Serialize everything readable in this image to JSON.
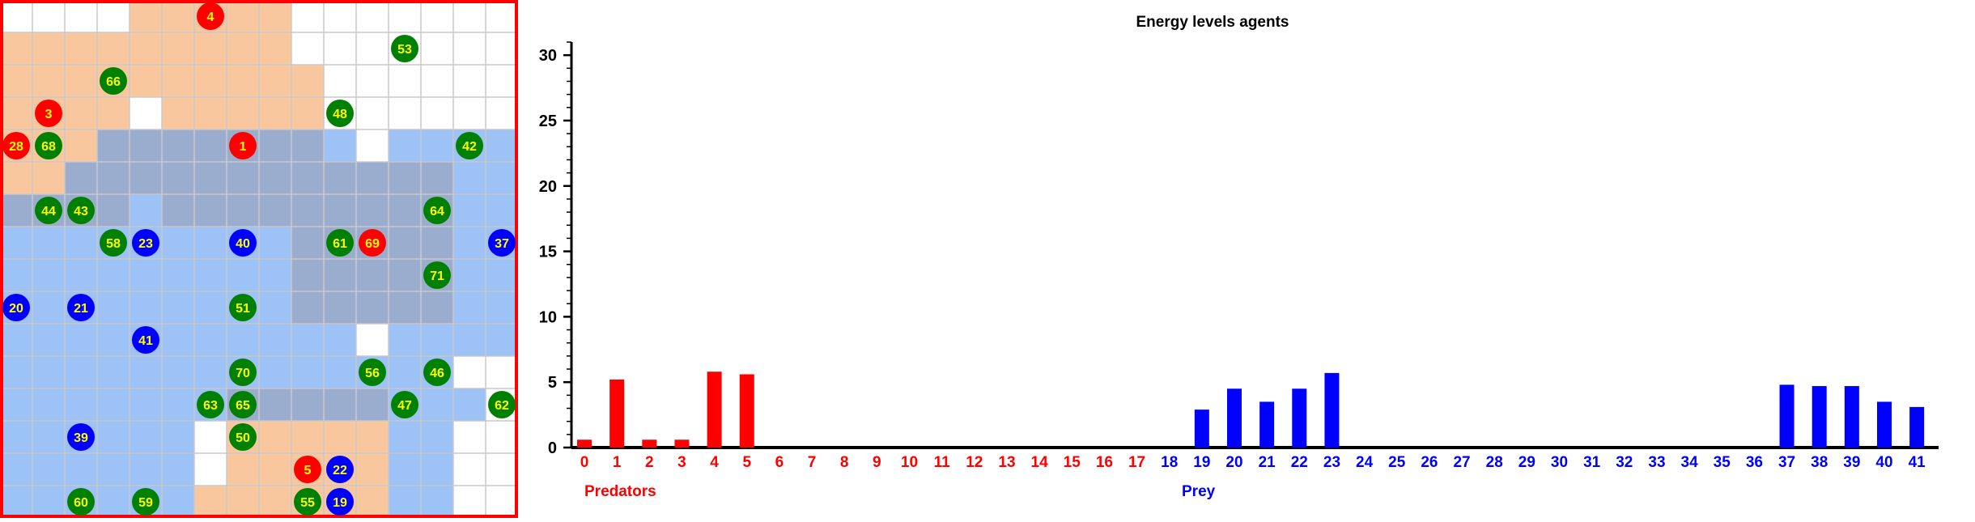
{
  "colors": {
    "predator": "#ff0000",
    "prey": "#0000ff",
    "plant": "#008000",
    "agent_label": "#ffff00",
    "grid_line": "#c8c8c8",
    "predator_zone": "#f5a25d",
    "prey_zone": "#5b9bf0",
    "border": "#ff0000"
  },
  "grid": {
    "cols": 16,
    "rows": 16,
    "predator_cells": [
      [
        0,
        4
      ],
      [
        0,
        5
      ],
      [
        0,
        6
      ],
      [
        0,
        7
      ],
      [
        0,
        8
      ],
      [
        1,
        0
      ],
      [
        1,
        1
      ],
      [
        1,
        2
      ],
      [
        1,
        3
      ],
      [
        1,
        4
      ],
      [
        1,
        5
      ],
      [
        1,
        6
      ],
      [
        1,
        7
      ],
      [
        1,
        8
      ],
      [
        2,
        0
      ],
      [
        2,
        1
      ],
      [
        2,
        2
      ],
      [
        2,
        3
      ],
      [
        2,
        4
      ],
      [
        2,
        5
      ],
      [
        2,
        6
      ],
      [
        2,
        7
      ],
      [
        2,
        8
      ],
      [
        2,
        9
      ],
      [
        3,
        0
      ],
      [
        3,
        1
      ],
      [
        3,
        2
      ],
      [
        3,
        3
      ],
      [
        3,
        5
      ],
      [
        3,
        6
      ],
      [
        3,
        7
      ],
      [
        3,
        8
      ],
      [
        3,
        9
      ],
      [
        4,
        0
      ],
      [
        4,
        1
      ],
      [
        4,
        2
      ],
      [
        4,
        3
      ],
      [
        4,
        4
      ],
      [
        4,
        5
      ],
      [
        4,
        6
      ],
      [
        4,
        7
      ],
      [
        4,
        8
      ],
      [
        4,
        9
      ],
      [
        5,
        0
      ],
      [
        5,
        1
      ],
      [
        5,
        2
      ],
      [
        5,
        3
      ],
      [
        5,
        4
      ],
      [
        5,
        5
      ],
      [
        5,
        6
      ],
      [
        5,
        7
      ],
      [
        5,
        8
      ],
      [
        5,
        9
      ],
      [
        5,
        10
      ],
      [
        5,
        11
      ],
      [
        5,
        12
      ],
      [
        5,
        13
      ],
      [
        6,
        0
      ],
      [
        6,
        1
      ],
      [
        6,
        2
      ],
      [
        6,
        3
      ],
      [
        6,
        5
      ],
      [
        6,
        6
      ],
      [
        6,
        7
      ],
      [
        6,
        8
      ],
      [
        6,
        9
      ],
      [
        6,
        10
      ],
      [
        6,
        11
      ],
      [
        6,
        12
      ],
      [
        6,
        13
      ],
      [
        7,
        9
      ],
      [
        7,
        10
      ],
      [
        7,
        11
      ],
      [
        7,
        12
      ],
      [
        7,
        13
      ],
      [
        8,
        9
      ],
      [
        8,
        10
      ],
      [
        8,
        11
      ],
      [
        8,
        12
      ],
      [
        8,
        13
      ],
      [
        9,
        9
      ],
      [
        9,
        10
      ],
      [
        9,
        11
      ],
      [
        9,
        12
      ],
      [
        9,
        13
      ],
      [
        12,
        7
      ],
      [
        12,
        8
      ],
      [
        12,
        9
      ],
      [
        12,
        10
      ],
      [
        12,
        11
      ],
      [
        13,
        7
      ],
      [
        13,
        8
      ],
      [
        13,
        9
      ],
      [
        13,
        10
      ],
      [
        13,
        11
      ],
      [
        14,
        7
      ],
      [
        14,
        8
      ],
      [
        14,
        9
      ],
      [
        14,
        10
      ],
      [
        14,
        11
      ],
      [
        15,
        6
      ],
      [
        15,
        7
      ],
      [
        15,
        8
      ],
      [
        15,
        9
      ],
      [
        15,
        10
      ],
      [
        15,
        11
      ]
    ],
    "prey_cells": [
      [
        4,
        3
      ],
      [
        4,
        4
      ],
      [
        4,
        5
      ],
      [
        4,
        6
      ],
      [
        4,
        7
      ],
      [
        4,
        8
      ],
      [
        4,
        9
      ],
      [
        4,
        10
      ],
      [
        4,
        12
      ],
      [
        4,
        13
      ],
      [
        4,
        14
      ],
      [
        4,
        15
      ],
      [
        5,
        2
      ],
      [
        5,
        3
      ],
      [
        5,
        4
      ],
      [
        5,
        5
      ],
      [
        5,
        6
      ],
      [
        5,
        7
      ],
      [
        5,
        8
      ],
      [
        5,
        9
      ],
      [
        5,
        10
      ],
      [
        5,
        11
      ],
      [
        5,
        12
      ],
      [
        5,
        13
      ],
      [
        5,
        14
      ],
      [
        5,
        15
      ],
      [
        6,
        0
      ],
      [
        6,
        1
      ],
      [
        6,
        2
      ],
      [
        6,
        3
      ],
      [
        6,
        4
      ],
      [
        6,
        5
      ],
      [
        6,
        6
      ],
      [
        6,
        7
      ],
      [
        6,
        8
      ],
      [
        6,
        9
      ],
      [
        6,
        10
      ],
      [
        6,
        11
      ],
      [
        6,
        12
      ],
      [
        6,
        13
      ],
      [
        6,
        14
      ],
      [
        6,
        15
      ],
      [
        7,
        0
      ],
      [
        7,
        1
      ],
      [
        7,
        2
      ],
      [
        7,
        3
      ],
      [
        7,
        4
      ],
      [
        7,
        5
      ],
      [
        7,
        6
      ],
      [
        7,
        7
      ],
      [
        7,
        8
      ],
      [
        7,
        9
      ],
      [
        7,
        10
      ],
      [
        7,
        11
      ],
      [
        7,
        12
      ],
      [
        7,
        13
      ],
      [
        7,
        14
      ],
      [
        7,
        15
      ],
      [
        8,
        0
      ],
      [
        8,
        1
      ],
      [
        8,
        2
      ],
      [
        8,
        3
      ],
      [
        8,
        4
      ],
      [
        8,
        5
      ],
      [
        8,
        6
      ],
      [
        8,
        7
      ],
      [
        8,
        8
      ],
      [
        8,
        9
      ],
      [
        8,
        10
      ],
      [
        8,
        11
      ],
      [
        8,
        12
      ],
      [
        8,
        13
      ],
      [
        8,
        14
      ],
      [
        8,
        15
      ],
      [
        9,
        0
      ],
      [
        9,
        1
      ],
      [
        9,
        2
      ],
      [
        9,
        3
      ],
      [
        9,
        4
      ],
      [
        9,
        5
      ],
      [
        9,
        6
      ],
      [
        9,
        7
      ],
      [
        9,
        8
      ],
      [
        9,
        9
      ],
      [
        9,
        10
      ],
      [
        9,
        11
      ],
      [
        9,
        12
      ],
      [
        9,
        13
      ],
      [
        9,
        14
      ],
      [
        9,
        15
      ],
      [
        10,
        0
      ],
      [
        10,
        1
      ],
      [
        10,
        2
      ],
      [
        10,
        3
      ],
      [
        10,
        4
      ],
      [
        10,
        5
      ],
      [
        10,
        6
      ],
      [
        10,
        7
      ],
      [
        10,
        8
      ],
      [
        10,
        9
      ],
      [
        10,
        10
      ],
      [
        10,
        12
      ],
      [
        10,
        13
      ],
      [
        10,
        14
      ],
      [
        10,
        15
      ],
      [
        11,
        0
      ],
      [
        11,
        1
      ],
      [
        11,
        2
      ],
      [
        11,
        3
      ],
      [
        11,
        4
      ],
      [
        11,
        5
      ],
      [
        11,
        6
      ],
      [
        11,
        7
      ],
      [
        11,
        8
      ],
      [
        11,
        9
      ],
      [
        11,
        10
      ],
      [
        11,
        11
      ],
      [
        11,
        12
      ],
      [
        11,
        13
      ],
      [
        12,
        0
      ],
      [
        12,
        1
      ],
      [
        12,
        2
      ],
      [
        12,
        3
      ],
      [
        12,
        4
      ],
      [
        12,
        5
      ],
      [
        12,
        6
      ],
      [
        12,
        7
      ],
      [
        12,
        8
      ],
      [
        12,
        9
      ],
      [
        12,
        10
      ],
      [
        12,
        11
      ],
      [
        12,
        12
      ],
      [
        12,
        13
      ],
      [
        12,
        14
      ],
      [
        13,
        0
      ],
      [
        13,
        1
      ],
      [
        13,
        2
      ],
      [
        13,
        3
      ],
      [
        13,
        4
      ],
      [
        13,
        5
      ],
      [
        13,
        12
      ],
      [
        13,
        13
      ],
      [
        14,
        0
      ],
      [
        14,
        1
      ],
      [
        14,
        2
      ],
      [
        14,
        3
      ],
      [
        14,
        4
      ],
      [
        14,
        5
      ],
      [
        14,
        12
      ],
      [
        14,
        13
      ],
      [
        15,
        0
      ],
      [
        15,
        1
      ],
      [
        15,
        2
      ],
      [
        15,
        3
      ],
      [
        15,
        4
      ],
      [
        15,
        5
      ],
      [
        15,
        12
      ],
      [
        15,
        13
      ]
    ],
    "agents": [
      {
        "id": "4",
        "type": "predator",
        "row": 0,
        "col": 6
      },
      {
        "id": "53",
        "type": "plant",
        "row": 1,
        "col": 12
      },
      {
        "id": "66",
        "type": "plant",
        "row": 2,
        "col": 3
      },
      {
        "id": "3",
        "type": "predator",
        "row": 3,
        "col": 1
      },
      {
        "id": "48",
        "type": "plant",
        "row": 3,
        "col": 10
      },
      {
        "id": "28",
        "type": "predator",
        "row": 4,
        "col": 0
      },
      {
        "id": "68",
        "type": "plant",
        "row": 4,
        "col": 1
      },
      {
        "id": "1",
        "type": "predator",
        "row": 4,
        "col": 7
      },
      {
        "id": "42",
        "type": "plant",
        "row": 4,
        "col": 14
      },
      {
        "id": "44",
        "type": "plant",
        "row": 6,
        "col": 1
      },
      {
        "id": "43",
        "type": "plant",
        "row": 6,
        "col": 2
      },
      {
        "id": "64",
        "type": "plant",
        "row": 6,
        "col": 13
      },
      {
        "id": "58",
        "type": "plant",
        "row": 7,
        "col": 3
      },
      {
        "id": "23",
        "type": "prey",
        "row": 7,
        "col": 4
      },
      {
        "id": "40",
        "type": "prey",
        "row": 7,
        "col": 7
      },
      {
        "id": "61",
        "type": "plant",
        "row": 7,
        "col": 10
      },
      {
        "id": "69",
        "type": "predator",
        "row": 7,
        "col": 11
      },
      {
        "id": "37",
        "type": "prey",
        "row": 7,
        "col": 15
      },
      {
        "id": "71",
        "type": "plant",
        "row": 8,
        "col": 13
      },
      {
        "id": "20",
        "type": "prey",
        "row": 9,
        "col": 0
      },
      {
        "id": "21",
        "type": "prey",
        "row": 9,
        "col": 2
      },
      {
        "id": "51",
        "type": "plant",
        "row": 9,
        "col": 7
      },
      {
        "id": "41",
        "type": "prey",
        "row": 10,
        "col": 4
      },
      {
        "id": "70",
        "type": "plant",
        "row": 11,
        "col": 7
      },
      {
        "id": "56",
        "type": "plant",
        "row": 11,
        "col": 11
      },
      {
        "id": "46",
        "type": "plant",
        "row": 11,
        "col": 13
      },
      {
        "id": "63",
        "type": "plant",
        "row": 12,
        "col": 6
      },
      {
        "id": "65",
        "type": "plant",
        "row": 12,
        "col": 7
      },
      {
        "id": "47",
        "type": "plant",
        "row": 12,
        "col": 12
      },
      {
        "id": "62",
        "type": "plant",
        "row": 12,
        "col": 15
      },
      {
        "id": "39",
        "type": "prey",
        "row": 13,
        "col": 2
      },
      {
        "id": "50",
        "type": "plant",
        "row": 13,
        "col": 7
      },
      {
        "id": "5",
        "type": "predator",
        "row": 14,
        "col": 9
      },
      {
        "id": "22",
        "type": "prey",
        "row": 14,
        "col": 10
      },
      {
        "id": "60",
        "type": "plant",
        "row": 15,
        "col": 2
      },
      {
        "id": "59",
        "type": "plant",
        "row": 15,
        "col": 4
      },
      {
        "id": "55",
        "type": "plant",
        "row": 15,
        "col": 9
      },
      {
        "id": "19",
        "type": "prey",
        "row": 15,
        "col": 10
      }
    ]
  },
  "chart_data": {
    "type": "bar",
    "title": "Energy levels agents",
    "ylim": [
      0,
      31
    ],
    "y_ticks": [
      "0",
      "5",
      "10",
      "15",
      "20",
      "25",
      "30"
    ],
    "categories": [
      "0",
      "1",
      "2",
      "3",
      "4",
      "5",
      "6",
      "7",
      "8",
      "9",
      "10",
      "11",
      "12",
      "13",
      "14",
      "15",
      "16",
      "17",
      "18",
      "19",
      "20",
      "21",
      "22",
      "23",
      "24",
      "25",
      "26",
      "27",
      "28",
      "29",
      "30",
      "31",
      "32",
      "33",
      "34",
      "35",
      "36",
      "37",
      "38",
      "39",
      "40",
      "41"
    ],
    "category_groups": [
      "predator",
      "predator",
      "predator",
      "predator",
      "predator",
      "predator",
      "predator",
      "predator",
      "predator",
      "predator",
      "predator",
      "predator",
      "predator",
      "predator",
      "predator",
      "predator",
      "predator",
      "predator",
      "prey",
      "prey",
      "prey",
      "prey",
      "prey",
      "prey",
      "prey",
      "prey",
      "prey",
      "prey",
      "prey",
      "prey",
      "prey",
      "prey",
      "prey",
      "prey",
      "prey",
      "prey",
      "prey",
      "prey",
      "prey",
      "prey",
      "prey",
      "prey"
    ],
    "values": [
      0.6,
      5.2,
      0.6,
      0.6,
      5.8,
      5.6,
      0,
      0,
      0,
      0,
      0,
      0,
      0,
      0,
      0,
      0,
      0,
      0,
      0,
      2.9,
      4.5,
      3.5,
      4.5,
      5.7,
      0,
      0,
      0,
      0,
      0,
      0,
      0,
      0,
      0,
      0,
      0,
      0,
      0,
      4.8,
      4.7,
      4.7,
      3.5,
      3.1
    ],
    "group_labels": {
      "predator": "Predators",
      "prey": "Prey"
    },
    "grid": false,
    "legend": "none"
  }
}
